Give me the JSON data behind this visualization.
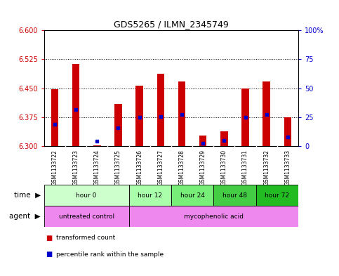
{
  "title": "GDS5265 / ILMN_2345749",
  "samples": [
    "GSM1133722",
    "GSM1133723",
    "GSM1133724",
    "GSM1133725",
    "GSM1133726",
    "GSM1133727",
    "GSM1133728",
    "GSM1133729",
    "GSM1133730",
    "GSM1133731",
    "GSM1133732",
    "GSM1133733"
  ],
  "bar_bottom": 6.3,
  "transformed_counts": [
    6.447,
    6.513,
    6.302,
    6.41,
    6.456,
    6.487,
    6.468,
    6.327,
    6.338,
    6.45,
    6.468,
    6.375
  ],
  "percentile_values": [
    6.357,
    6.395,
    6.313,
    6.348,
    6.375,
    6.376,
    6.382,
    6.308,
    6.315,
    6.375,
    6.382,
    6.325
  ],
  "ylim": [
    6.3,
    6.6
  ],
  "yticks_left": [
    6.3,
    6.375,
    6.45,
    6.525,
    6.6
  ],
  "yticks_right": [
    0,
    25,
    50,
    75,
    100
  ],
  "dotted_lines": [
    6.375,
    6.45,
    6.525
  ],
  "bar_color": "#cc0000",
  "percentile_color": "#0000cc",
  "bar_width": 0.35,
  "time_groups": [
    {
      "label": "hour 0",
      "start": 0,
      "end": 3,
      "color": "#ccffcc"
    },
    {
      "label": "hour 12",
      "start": 4,
      "end": 5,
      "color": "#aaffaa"
    },
    {
      "label": "hour 24",
      "start": 6,
      "end": 7,
      "color": "#77ee77"
    },
    {
      "label": "hour 48",
      "start": 8,
      "end": 9,
      "color": "#44cc44"
    },
    {
      "label": "hour 72",
      "start": 10,
      "end": 11,
      "color": "#22bb22"
    }
  ],
  "agent_untreated_color": "#ee88ee",
  "agent_myco_color": "#ee88ee",
  "left_label_color": "#cc0000",
  "right_label_color": "#0000cc",
  "sample_area_color": "#cccccc",
  "plot_bg": "#ffffff"
}
